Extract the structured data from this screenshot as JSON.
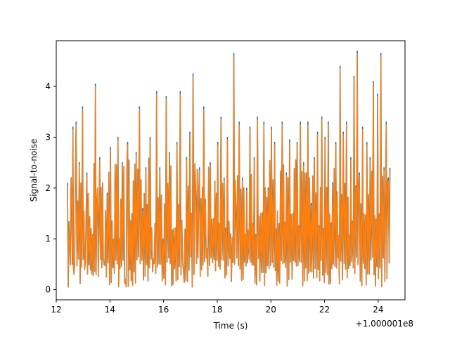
{
  "chart_data": {
    "type": "line",
    "title": "",
    "xlabel": "Time (s)",
    "ylabel": "Signal-to-noise",
    "x_offset_label": "+1.000001e8",
    "xlim": [
      12.0,
      25.0
    ],
    "ylim": [
      -0.2,
      4.9
    ],
    "xticks": [
      12,
      14,
      16,
      18,
      20,
      22,
      24
    ],
    "xtick_labels": [
      "12",
      "14",
      "16",
      "18",
      "20",
      "22",
      "24"
    ],
    "yticks": [
      0,
      1,
      2,
      3,
      4
    ],
    "ytick_labels": [
      "0",
      "1",
      "2",
      "3",
      "4"
    ],
    "grid": false,
    "legend": "none",
    "series": [
      {
        "color": "#1f77b4",
        "x": [
          12.42,
          12.5,
          12.58,
          12.62,
          12.66,
          12.74,
          12.86,
          12.98,
          13.06,
          13.14,
          13.3,
          13.46,
          13.54,
          13.62,
          13.78,
          13.9,
          14.02,
          14.14,
          14.3,
          14.46,
          14.58,
          14.66,
          14.82,
          14.98,
          15.1,
          15.22,
          15.34,
          15.5,
          15.62,
          15.74,
          15.86,
          15.98,
          16.1,
          16.22,
          16.38,
          16.5,
          16.62,
          16.74,
          16.86,
          16.98,
          17.1,
          17.2,
          17.34,
          17.5,
          17.62,
          17.74,
          17.86,
          18.02,
          18.14,
          18.26,
          18.38,
          18.5,
          18.62,
          18.7,
          18.82,
          18.94,
          19.1,
          19.22,
          19.38,
          19.5,
          19.62,
          19.74,
          19.9,
          20.02,
          20.14,
          20.3,
          20.42,
          20.58,
          20.7,
          20.82,
          20.98,
          21.1,
          21.22,
          21.38,
          21.5,
          21.62,
          21.74,
          21.9,
          22.02,
          22.14,
          22.3,
          22.42,
          22.58,
          22.7,
          22.82,
          22.98,
          23.1,
          23.22,
          23.3,
          23.42,
          23.58,
          23.7,
          23.82,
          23.98,
          24.1,
          24.22,
          24.3,
          24.38,
          24.44
        ],
        "y": [
          2.1,
          0.9,
          1.8,
          3.2,
          0.3,
          3.3,
          2.5,
          3.6,
          0.4,
          2.3,
          1.2,
          4.05,
          2.0,
          2.6,
          0.5,
          1.9,
          2.8,
          1.0,
          3.0,
          2.5,
          0.2,
          2.9,
          1.5,
          2.7,
          3.6,
          1.6,
          2.4,
          3.0,
          0.6,
          3.9,
          2.4,
          1.0,
          3.8,
          2.7,
          1.2,
          2.9,
          3.9,
          0.4,
          2.6,
          3.1,
          4.25,
          1.9,
          2.4,
          3.6,
          0.8,
          2.5,
          1.4,
          2.9,
          3.4,
          2.2,
          3.0,
          1.1,
          4.65,
          1.6,
          3.3,
          2.2,
          2.0,
          3.2,
          2.6,
          3.4,
          1.5,
          3.3,
          2.0,
          3.2,
          2.9,
          1.3,
          3.3,
          2.3,
          2.95,
          1.5,
          2.9,
          3.3,
          2.5,
          3.3,
          1.7,
          2.6,
          3.1,
          3.4,
          3.0,
          3.3,
          2.1,
          2.9,
          4.4,
          3.1,
          3.3,
          2.6,
          4.2,
          4.7,
          2.3,
          3.2,
          2.9,
          2.6,
          4.1,
          3.85,
          4.65,
          2.4,
          3.3,
          2.2,
          2.4
        ]
      },
      {
        "color": "#ff7f0e",
        "x": [
          12.42,
          12.5,
          12.58,
          12.62,
          12.66,
          12.74,
          12.86,
          12.98,
          13.06,
          13.14,
          13.3,
          13.46,
          13.54,
          13.62,
          13.78,
          13.9,
          14.02,
          14.14,
          14.3,
          14.46,
          14.58,
          14.66,
          14.82,
          14.98,
          15.1,
          15.22,
          15.34,
          15.5,
          15.62,
          15.74,
          15.86,
          15.98,
          16.1,
          16.22,
          16.38,
          16.5,
          16.62,
          16.74,
          16.86,
          16.98,
          17.1,
          17.2,
          17.34,
          17.5,
          17.62,
          17.74,
          17.86,
          18.02,
          18.14,
          18.26,
          18.38,
          18.5,
          18.62,
          18.7,
          18.82,
          18.94,
          19.1,
          19.22,
          19.38,
          19.5,
          19.62,
          19.74,
          19.9,
          20.02,
          20.14,
          20.3,
          20.42,
          20.58,
          20.7,
          20.82,
          20.98,
          21.1,
          21.22,
          21.38,
          21.5,
          21.62,
          21.74,
          21.9,
          22.02,
          22.14,
          22.3,
          22.42,
          22.58,
          22.7,
          22.82,
          22.98,
          23.1,
          23.22,
          23.3,
          23.42,
          23.58,
          23.7,
          23.82,
          23.98,
          24.1,
          24.22,
          24.3,
          24.38,
          24.44
        ],
        "y": [
          2.05,
          0.85,
          1.75,
          3.15,
          0.3,
          3.25,
          2.45,
          3.55,
          0.4,
          2.25,
          1.2,
          4.0,
          2.0,
          2.55,
          0.5,
          1.85,
          2.75,
          1.0,
          2.95,
          2.45,
          0.2,
          2.85,
          1.5,
          2.65,
          3.55,
          1.55,
          2.35,
          2.95,
          0.6,
          3.85,
          2.35,
          1.0,
          3.75,
          2.65,
          1.2,
          2.85,
          3.85,
          0.4,
          2.55,
          3.05,
          4.2,
          1.85,
          2.35,
          3.55,
          0.8,
          2.45,
          1.4,
          2.85,
          3.35,
          2.15,
          2.95,
          1.1,
          4.6,
          1.55,
          3.25,
          2.15,
          1.95,
          3.15,
          2.55,
          3.35,
          1.5,
          3.25,
          1.95,
          3.15,
          2.85,
          1.3,
          3.25,
          2.25,
          2.9,
          1.5,
          2.85,
          3.25,
          2.45,
          3.25,
          1.65,
          2.55,
          3.05,
          3.35,
          2.95,
          3.25,
          2.05,
          2.85,
          4.35,
          3.05,
          3.25,
          2.55,
          4.15,
          4.65,
          2.25,
          3.15,
          2.85,
          2.55,
          4.05,
          3.8,
          4.6,
          2.35,
          3.25,
          2.15,
          2.35
        ]
      }
    ]
  }
}
